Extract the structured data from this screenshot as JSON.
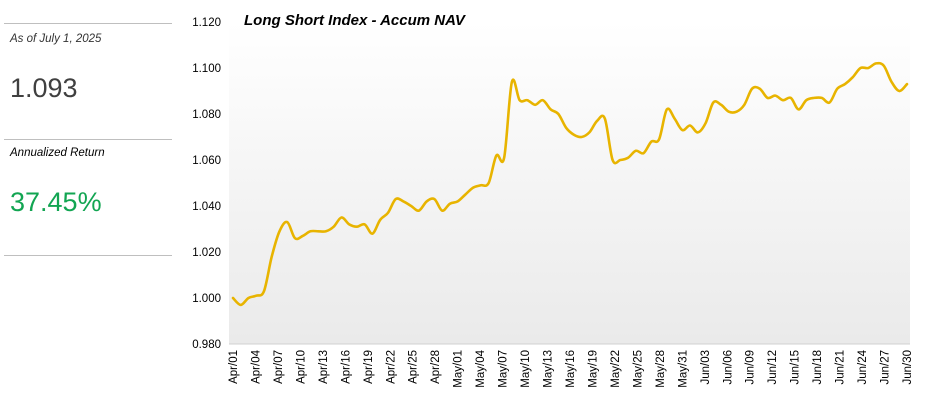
{
  "summary": {
    "as_of": "As of July 1, 2025",
    "nav": "1.093",
    "return_label": "Annualized Return",
    "return_value": "37.45%",
    "return_color": "#12a552"
  },
  "chart_data": {
    "type": "line",
    "title": "Long Short Index - Accum NAV",
    "xlabel": "",
    "ylabel": "",
    "ylim": [
      0.98,
      1.12
    ],
    "yticks": [
      0.98,
      1.0,
      1.02,
      1.04,
      1.06,
      1.08,
      1.1,
      1.12
    ],
    "ytick_labels": [
      "0.980",
      "1.000",
      "1.020",
      "1.040",
      "1.060",
      "1.080",
      "1.100",
      "1.120"
    ],
    "x_tick_labels": [
      "Apr/01",
      "Apr/04",
      "Apr/07",
      "Apr/10",
      "Apr/13",
      "Apr/16",
      "Apr/19",
      "Apr/22",
      "Apr/25",
      "Apr/28",
      "May/01",
      "May/04",
      "May/07",
      "May/10",
      "May/13",
      "May/16",
      "May/19",
      "May/22",
      "May/25",
      "May/28",
      "May/31",
      "Jun/03",
      "Jun/06",
      "Jun/09",
      "Jun/12",
      "Jun/15",
      "Jun/18",
      "Jun/21",
      "Jun/24",
      "Jun/27",
      "Jun/30"
    ],
    "grid": false,
    "legend": "none",
    "line_color": "#e8b400",
    "series": [
      {
        "values": [
          1.0,
          0.997,
          1.0,
          1.001,
          1.003,
          1.018,
          1.029,
          1.033,
          1.026,
          1.027,
          1.029,
          1.029,
          1.029,
          1.031,
          1.035,
          1.032,
          1.031,
          1.032,
          1.028,
          1.034,
          1.037,
          1.043,
          1.042,
          1.04,
          1.038,
          1.042,
          1.043,
          1.038,
          1.041,
          1.042,
          1.045,
          1.048,
          1.049,
          1.05,
          1.062,
          1.061,
          1.094,
          1.086,
          1.086,
          1.084,
          1.086,
          1.082,
          1.08,
          1.074,
          1.071,
          1.07,
          1.072,
          1.077,
          1.078,
          1.06,
          1.06,
          1.061,
          1.064,
          1.063,
          1.068,
          1.069,
          1.082,
          1.078,
          1.073,
          1.075,
          1.072,
          1.076,
          1.085,
          1.084,
          1.081,
          1.081,
          1.084,
          1.091,
          1.091,
          1.087,
          1.088,
          1.086,
          1.087,
          1.082,
          1.086,
          1.087,
          1.087,
          1.085,
          1.091,
          1.093,
          1.096,
          1.1,
          1.1,
          1.102,
          1.101,
          1.094,
          1.09,
          1.093
        ]
      }
    ]
  }
}
